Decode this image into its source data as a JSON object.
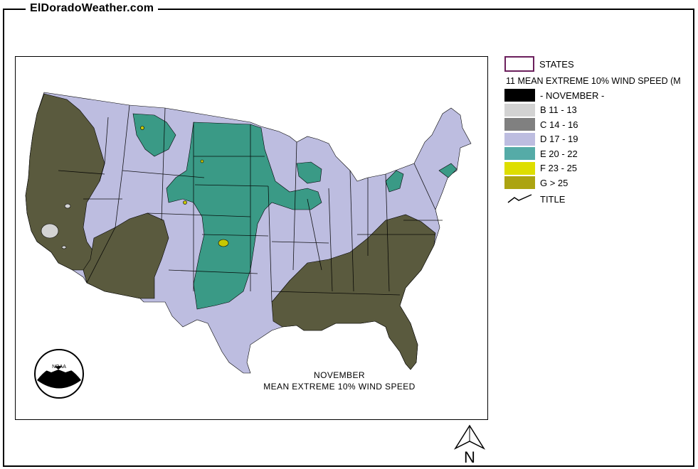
{
  "site": {
    "title": "ElDoradoWeather.com"
  },
  "legend": {
    "states_label": "STATES",
    "layer_title": "11 MEAN EXTREME 10% WIND SPEED (M",
    "items": [
      {
        "label": "- NOVEMBER -",
        "color": "#000000"
      },
      {
        "label": "B 11 - 13",
        "color": "#d3d3d3"
      },
      {
        "label": "C 14 - 16",
        "color": "#808080"
      },
      {
        "label": "D 17 - 19",
        "color": "#bdbde0"
      },
      {
        "label": "E 20 - 22",
        "color": "#55aba7"
      },
      {
        "label": "F 23 - 25",
        "color": "#dede00"
      },
      {
        "label": "G > 25",
        "color": "#aca411"
      }
    ],
    "title_label": "TITLE"
  },
  "map": {
    "caption_line1": "NOVEMBER",
    "caption_line2": "MEAN EXTREME 10% WIND SPEED",
    "north_label": "N",
    "colors": {
      "low": "#5a5a3e",
      "mid": "#bdbde0",
      "high": "#3a9a86",
      "peak": "#c8c800",
      "light": "#d3d3d3"
    }
  }
}
